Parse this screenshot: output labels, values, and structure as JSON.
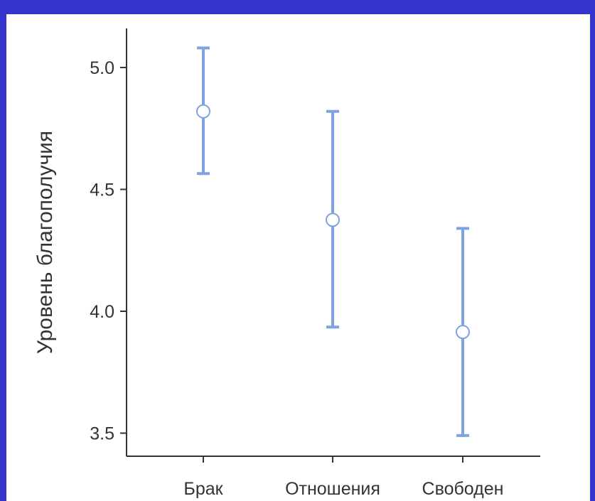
{
  "chart_data": {
    "type": "errorbar",
    "categories": [
      "Брак",
      "Отношения",
      "Свободен"
    ],
    "series": [
      {
        "values": [
          4.82,
          4.375,
          3.915
        ],
        "lower": [
          4.565,
          3.935,
          3.49
        ],
        "upper": [
          5.08,
          4.82,
          4.34
        ]
      }
    ],
    "ylabel": "Уровень благополучия",
    "xlabel": "",
    "yticks": [
      3.5,
      4.0,
      4.5,
      5.0
    ],
    "ytick_labels": [
      "3.5",
      "4.0",
      "4.5",
      "5.0"
    ],
    "ylim": [
      3.41,
      5.16
    ],
    "grid": false,
    "colors": {
      "bar": "#7fa2e2",
      "marker_fill": "#ffffff",
      "axis": "#333333",
      "frame": "#3434cc"
    }
  }
}
